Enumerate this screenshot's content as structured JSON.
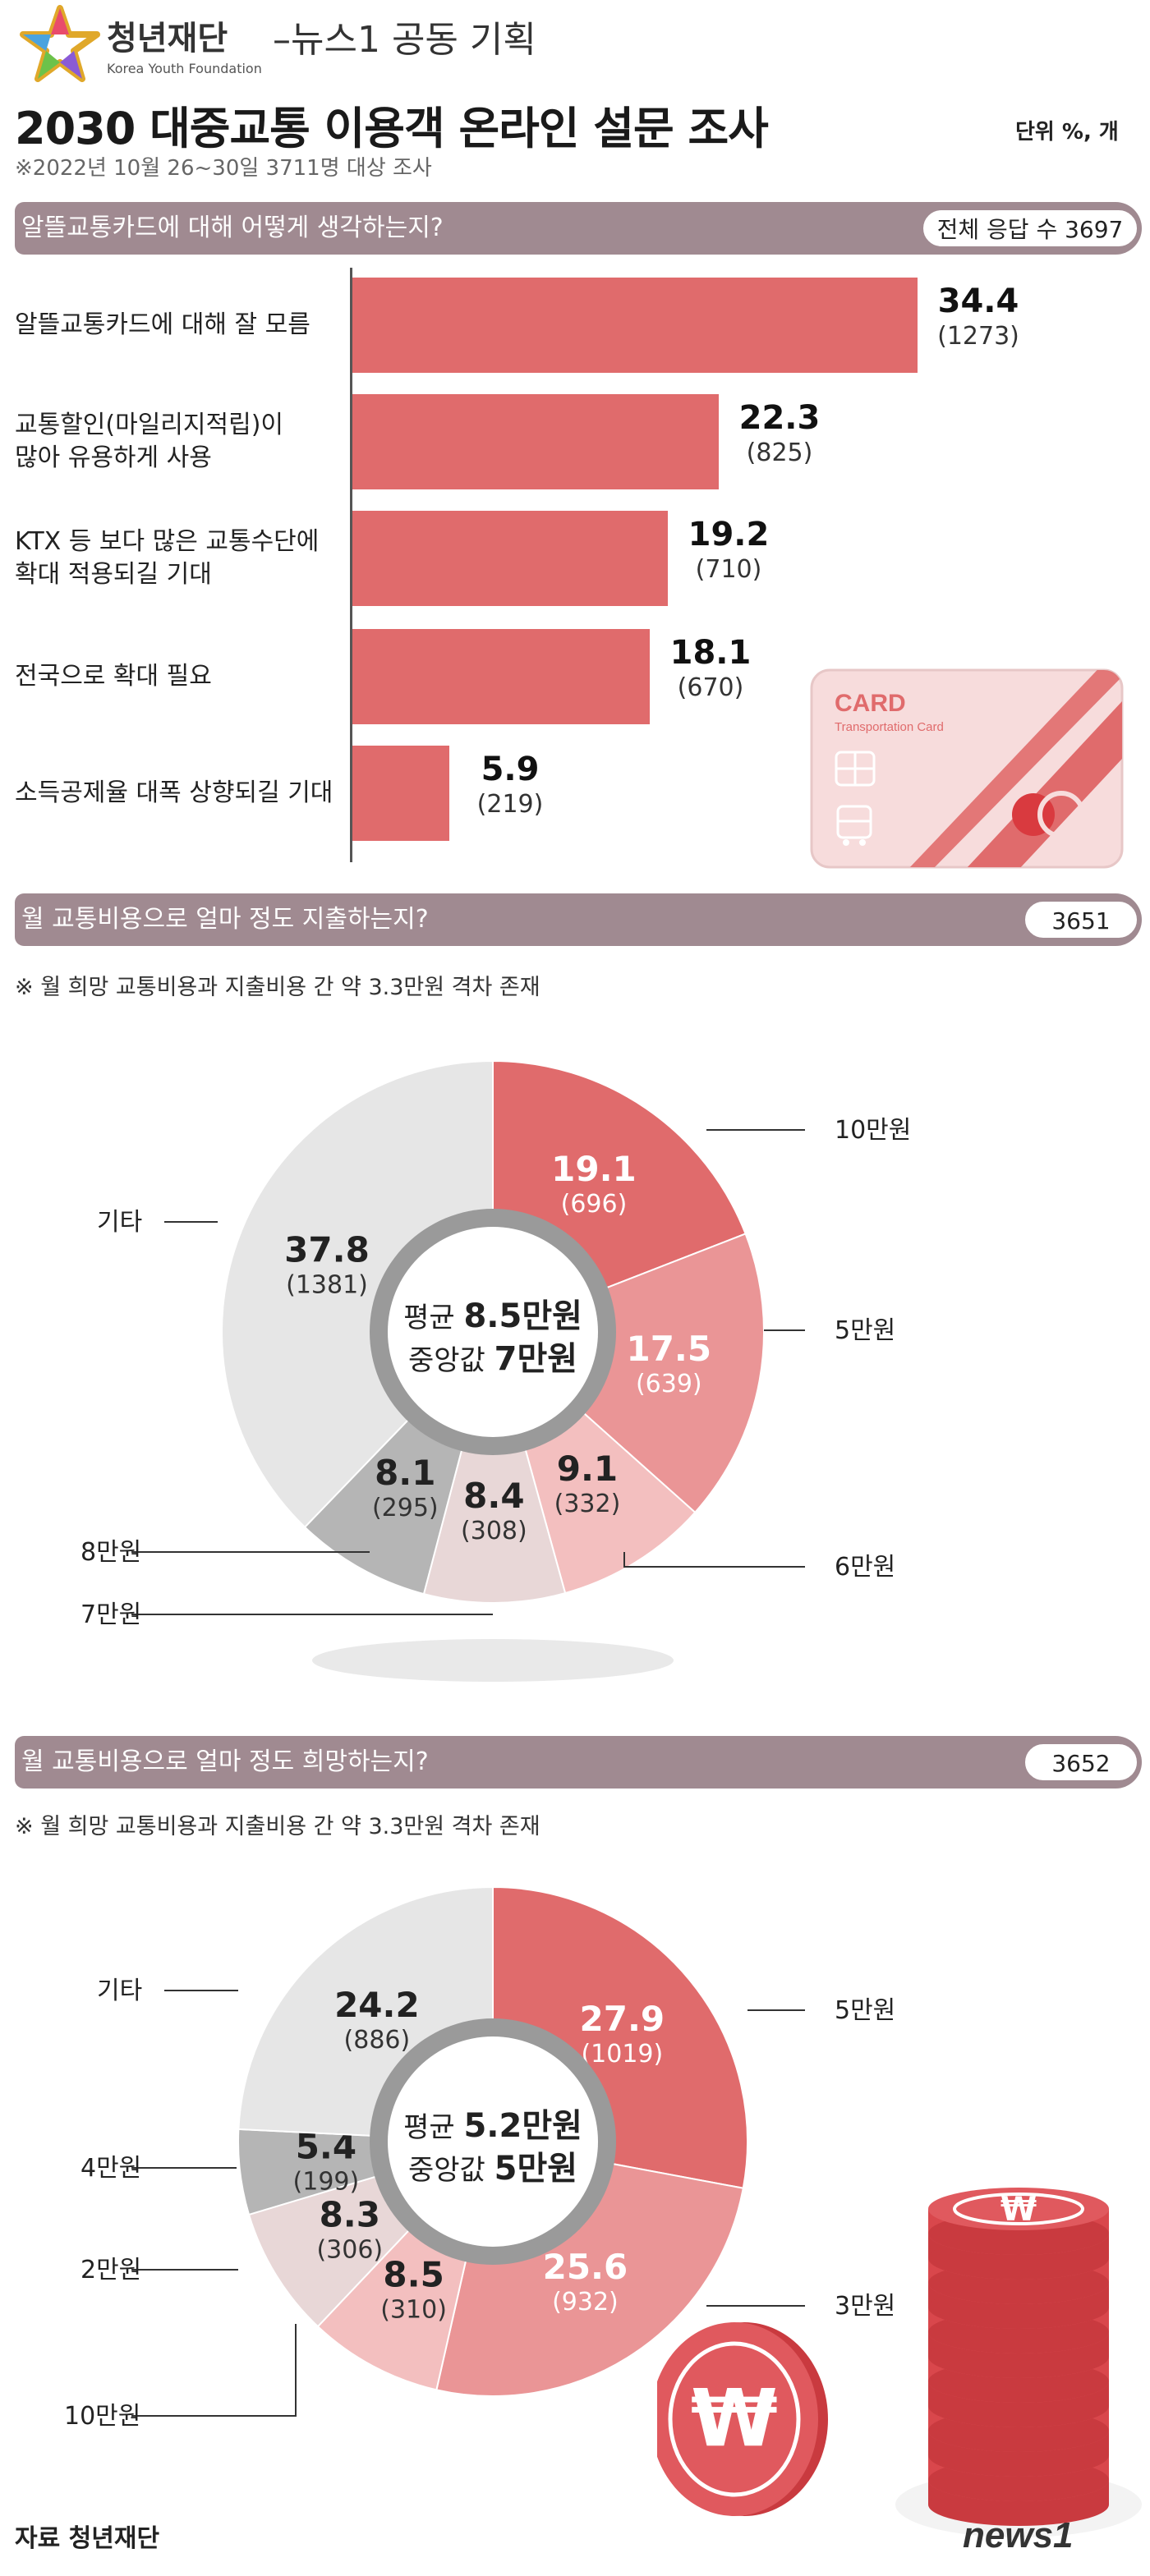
{
  "header": {
    "org_name": "청년재단",
    "org_name_en": "Korea Youth Foundation",
    "collab": "–뉴스1 공동 기획",
    "title": "2030 대중교통 이용객 온라인 설문 조사",
    "subtitle": "※2022년 10월 26~30일 3711명 대상 조사",
    "unit": "단위 %, 개"
  },
  "colors": {
    "accent": "#e06b6c",
    "section_bar": "#a08a91"
  },
  "section1": {
    "question": "알뜰교통카드에 대해 어떻게 생각하는지?",
    "respondents": "전체 응답 수 3697",
    "card_text": "CARD",
    "card_sub": "Transportation Card"
  },
  "section2": {
    "question": "월 교통비용으로 얼마 정도 지출하는지?",
    "respondents": "3651",
    "note": "※ 월 희망 교통비용과 지출비용 간 약 3.3만원 격차 존재",
    "center_avg_prefix": "평균",
    "center_avg_value": "8.5만원",
    "center_med_prefix": "중앙값",
    "center_med_value": "7만원"
  },
  "section3": {
    "question": "월 교통비용으로 얼마 정도 희망하는지?",
    "respondents": "3652",
    "note": "※ 월 희망 교통비용과 지출비용 간 약 3.3만원 격차 존재",
    "center_avg_prefix": "평균",
    "center_avg_value": "5.2만원",
    "center_med_prefix": "중앙값",
    "center_med_value": "5만원"
  },
  "footer": {
    "source": "자료 청년재단",
    "news_logo": "news1"
  },
  "chart_data": [
    {
      "type": "bar",
      "orientation": "horizontal",
      "title": "알뜰교통카드에 대해 어떻게 생각하는지?",
      "categories": [
        [
          "알뜰교통카드에 대해 잘 모름"
        ],
        [
          "교통할인(마일리지적립)이",
          "많아 유용하게 사용"
        ],
        [
          "KTX 등 보다 많은 교통수단에",
          "확대 적용되길 기대"
        ],
        [
          "전국으로 확대 필요"
        ],
        [
          "소득공제율 대폭 상향되길 기대"
        ]
      ],
      "values": [
        34.4,
        22.3,
        19.2,
        18.1,
        5.9
      ],
      "value_labels": [
        "34.4",
        "22.3",
        "19.2",
        "18.1",
        "5.9"
      ],
      "counts": [
        "(1273)",
        "(825)",
        "(710)",
        "(670)",
        "(219)"
      ],
      "xlim": [
        0,
        40
      ]
    },
    {
      "type": "pie",
      "donut": true,
      "title": "월 교통비용으로 얼마 정도 지출하는지?",
      "slices": [
        {
          "label": "10만원",
          "value": 19.1,
          "value_label": "19.1",
          "count": "(696)",
          "color": "#e06b6c"
        },
        {
          "label": "5만원",
          "value": 17.5,
          "value_label": "17.5",
          "count": "(639)",
          "color": "#ea9596"
        },
        {
          "label": "6만원",
          "value": 9.1,
          "value_label": "9.1",
          "count": "(332)",
          "color": "#f3bfbf"
        },
        {
          "label": "7만원",
          "value": 8.4,
          "value_label": "8.4",
          "count": "(308)",
          "color": "#e8d7d7"
        },
        {
          "label": "8만원",
          "value": 8.1,
          "value_label": "8.1",
          "count": "(295)",
          "color": "#b5b5b5"
        },
        {
          "label": "기타",
          "value": 37.8,
          "value_label": "37.8",
          "count": "(1381)",
          "color": "#e6e6e6"
        }
      ]
    },
    {
      "type": "pie",
      "donut": true,
      "title": "월 교통비용으로 얼마 정도 희망하는지?",
      "slices": [
        {
          "label": "5만원",
          "value": 27.9,
          "value_label": "27.9",
          "count": "(1019)",
          "color": "#e06b6c"
        },
        {
          "label": "3만원",
          "value": 25.6,
          "value_label": "25.6",
          "count": "(932)",
          "color": "#ea9596"
        },
        {
          "label": "10만원",
          "value": 8.5,
          "value_label": "8.5",
          "count": "(310)",
          "color": "#f3bfbf"
        },
        {
          "label": "2만원",
          "value": 8.3,
          "value_label": "8.3",
          "count": "(306)",
          "color": "#e8d7d7"
        },
        {
          "label": "4만원",
          "value": 5.4,
          "value_label": "5.4",
          "count": "(199)",
          "color": "#b5b5b5"
        },
        {
          "label": "기타",
          "value": 24.2,
          "value_label": "24.2",
          "count": "(886)",
          "color": "#e6e6e6"
        }
      ]
    }
  ]
}
